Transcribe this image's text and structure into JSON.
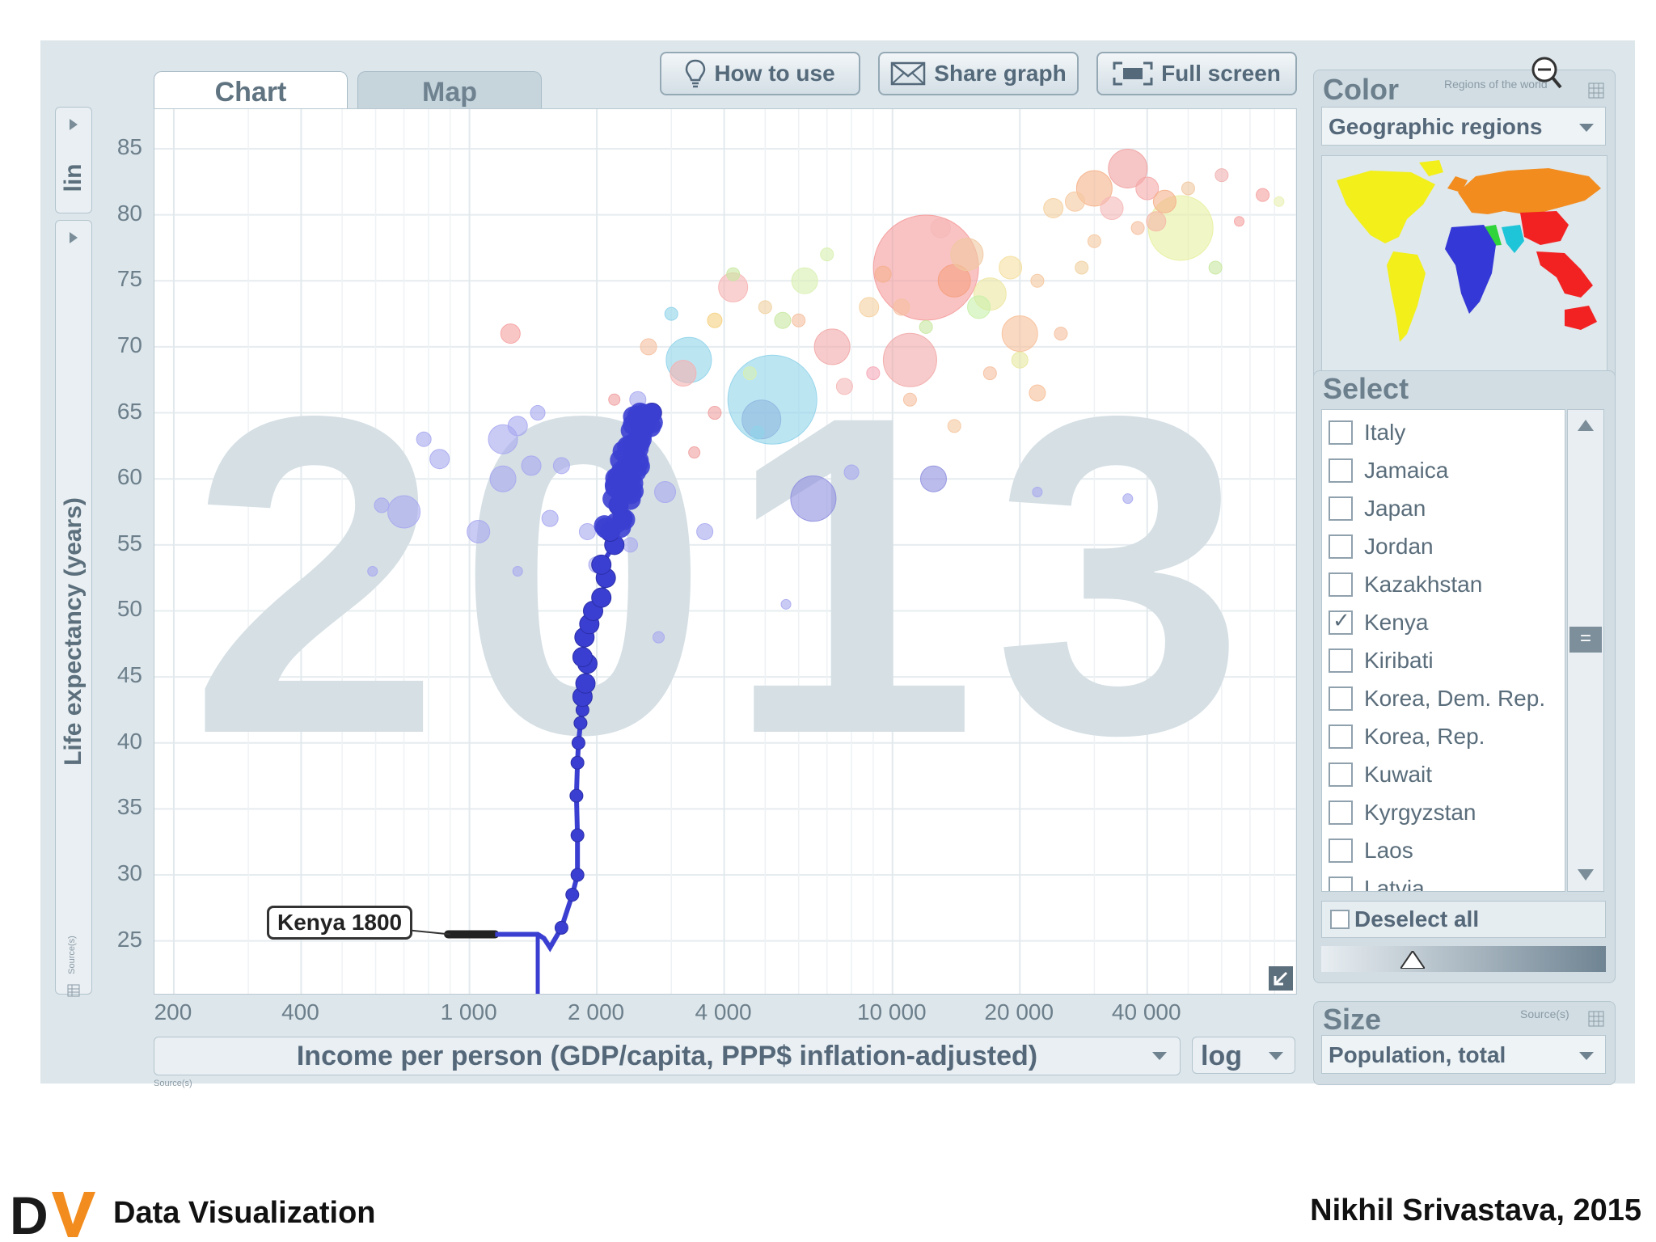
{
  "tabs": {
    "chart": "Chart",
    "map": "Map"
  },
  "toolbar": {
    "how_to_use": "How to use",
    "share_graph": "Share graph",
    "full_screen": "Full screen"
  },
  "y_axis": {
    "scale": "lin",
    "label": "Life expectancy (years)",
    "source": "Source(s)"
  },
  "x_axis": {
    "label": "Income per person (GDP/capita, PPP$ inflation-adjusted)",
    "scale": "log",
    "source": "Source(s)"
  },
  "chart_data": {
    "type": "scatter",
    "year_watermark": "2013",
    "xlabel": "Income per person (GDP/capita, PPP$ inflation-adjusted)",
    "ylabel": "Life expectancy (years)",
    "x_scale": "log",
    "y_scale": "lin",
    "xlim": [
      180,
      90000
    ],
    "ylim": [
      21,
      88
    ],
    "x_ticks": [
      200,
      400,
      1000,
      2000,
      4000,
      10000,
      20000,
      40000
    ],
    "x_tick_labels": [
      "200",
      "400",
      "1 000",
      "2 000",
      "4 000",
      "10 000",
      "20 000",
      "40 000"
    ],
    "y_ticks": [
      25,
      30,
      35,
      40,
      45,
      50,
      55,
      60,
      65,
      70,
      75,
      80,
      85
    ],
    "grid": true,
    "annotation": "Kenya 1800",
    "trail": {
      "name": "Kenya",
      "color": "#3b3fd1",
      "points": [
        [
          890,
          25.5
        ],
        [
          1100,
          25.5
        ],
        [
          1150,
          25.5
        ],
        [
          1450,
          25.5
        ],
        [
          1500,
          25.2
        ],
        [
          1550,
          24.5
        ],
        [
          1650,
          26
        ],
        [
          1750,
          28.5
        ],
        [
          1800,
          30
        ],
        [
          1800,
          33
        ],
        [
          1790,
          36
        ],
        [
          1800,
          38.5
        ],
        [
          1810,
          40
        ],
        [
          1830,
          41.5
        ],
        [
          1850,
          42.5
        ],
        [
          1850,
          43.5
        ],
        [
          1880,
          44.5
        ],
        [
          1900,
          46
        ],
        [
          1850,
          46.5
        ],
        [
          1870,
          48
        ],
        [
          1920,
          49
        ],
        [
          1960,
          50
        ],
        [
          2050,
          51
        ],
        [
          2100,
          52.5
        ],
        [
          2050,
          53.5
        ],
        [
          2200,
          55
        ],
        [
          2150,
          56
        ],
        [
          2300,
          57
        ],
        [
          2250,
          58
        ],
        [
          2350,
          59
        ],
        [
          2300,
          60
        ],
        [
          2400,
          61
        ],
        [
          2450,
          62
        ],
        [
          2500,
          63
        ],
        [
          2600,
          64
        ],
        [
          2700,
          65
        ]
      ]
    },
    "trail_head": {
      "x": 1450,
      "y": 25.5
    },
    "bubbles": [
      {
        "x": 12000,
        "y": 76,
        "r": 65,
        "c": "#f59b9b"
      },
      {
        "x": 5200,
        "y": 66,
        "r": 55,
        "c": "#8fd3ea"
      },
      {
        "x": 3300,
        "y": 69,
        "r": 28,
        "c": "#8fd3ea"
      },
      {
        "x": 6500,
        "y": 58.5,
        "r": 28,
        "c": "#8f8fe0"
      },
      {
        "x": 11000,
        "y": 69,
        "r": 33,
        "c": "#f2a8a8"
      },
      {
        "x": 7200,
        "y": 70,
        "r": 22,
        "c": "#f2a8a8"
      },
      {
        "x": 30000,
        "y": 82,
        "r": 22,
        "c": "#f5b28a"
      },
      {
        "x": 36000,
        "y": 83.5,
        "r": 24,
        "c": "#f0a0a0"
      },
      {
        "x": 48000,
        "y": 79,
        "r": 40,
        "c": "#e8f0a0"
      },
      {
        "x": 20000,
        "y": 71,
        "r": 22,
        "c": "#f7c09a"
      },
      {
        "x": 14000,
        "y": 75,
        "r": 20,
        "c": "#f5a080"
      },
      {
        "x": 15000,
        "y": 77,
        "r": 20,
        "c": "#f0c8a0"
      },
      {
        "x": 17000,
        "y": 74,
        "r": 20,
        "c": "#ede6a0"
      },
      {
        "x": 4900,
        "y": 64.5,
        "r": 24,
        "c": "#90b8e0"
      },
      {
        "x": 4200,
        "y": 74.5,
        "r": 18,
        "c": "#f7b2b2"
      },
      {
        "x": 3200,
        "y": 68,
        "r": 16,
        "c": "#f5b0b0"
      },
      {
        "x": 12500,
        "y": 60,
        "r": 16,
        "c": "#8f8fe0"
      },
      {
        "x": 700,
        "y": 57.5,
        "r": 20,
        "c": "#a7a9ef"
      },
      {
        "x": 850,
        "y": 61.5,
        "r": 12,
        "c": "#a7a9ef"
      },
      {
        "x": 1200,
        "y": 63,
        "r": 18,
        "c": "#a7a9ef"
      },
      {
        "x": 1200,
        "y": 60,
        "r": 16,
        "c": "#a7a9ef"
      },
      {
        "x": 1400,
        "y": 61,
        "r": 12,
        "c": "#a7a9ef"
      },
      {
        "x": 1050,
        "y": 56,
        "r": 14,
        "c": "#a7a9ef"
      },
      {
        "x": 1300,
        "y": 64,
        "r": 12,
        "c": "#a7a9ef"
      },
      {
        "x": 2900,
        "y": 59,
        "r": 13,
        "c": "#a7a9ef"
      },
      {
        "x": 3600,
        "y": 56,
        "r": 10,
        "c": "#a7a9ef"
      },
      {
        "x": 1900,
        "y": 56,
        "r": 10,
        "c": "#a7a9ef"
      },
      {
        "x": 1550,
        "y": 57,
        "r": 10,
        "c": "#a7a9ef"
      },
      {
        "x": 2000,
        "y": 53.5,
        "r": 10,
        "c": "#a7a9ef"
      },
      {
        "x": 2400,
        "y": 55,
        "r": 9,
        "c": "#a7a9ef"
      },
      {
        "x": 620,
        "y": 58,
        "r": 9,
        "c": "#a7a9ef"
      },
      {
        "x": 780,
        "y": 63,
        "r": 9,
        "c": "#a7a9ef"
      },
      {
        "x": 1650,
        "y": 61,
        "r": 10,
        "c": "#a7a9ef"
      },
      {
        "x": 1450,
        "y": 65,
        "r": 9,
        "c": "#a7a9ef"
      },
      {
        "x": 8000,
        "y": 60.5,
        "r": 9,
        "c": "#a7a9ef"
      },
      {
        "x": 2500,
        "y": 66,
        "r": 10,
        "c": "#a7a9ef"
      },
      {
        "x": 590,
        "y": 53,
        "r": 6,
        "c": "#a7a9ef"
      },
      {
        "x": 1300,
        "y": 53,
        "r": 6,
        "c": "#a7a9ef"
      },
      {
        "x": 5600,
        "y": 50.5,
        "r": 6,
        "c": "#a7a9ef"
      },
      {
        "x": 2800,
        "y": 48,
        "r": 7,
        "c": "#a7a9ef"
      },
      {
        "x": 22000,
        "y": 59,
        "r": 6,
        "c": "#a7a9ef"
      },
      {
        "x": 36000,
        "y": 58.5,
        "r": 6,
        "c": "#a7a9ef"
      },
      {
        "x": 1250,
        "y": 71,
        "r": 12,
        "c": "#f5a0a0"
      },
      {
        "x": 2650,
        "y": 70,
        "r": 10,
        "c": "#f5c0a0"
      },
      {
        "x": 3800,
        "y": 72,
        "r": 9,
        "c": "#f5d080"
      },
      {
        "x": 4200,
        "y": 75.5,
        "r": 8,
        "c": "#c8e8a0"
      },
      {
        "x": 5500,
        "y": 72,
        "r": 10,
        "c": "#c8e8a0"
      },
      {
        "x": 6200,
        "y": 75,
        "r": 16,
        "c": "#d8f0b0"
      },
      {
        "x": 8800,
        "y": 73,
        "r": 12,
        "c": "#f5d0a0"
      },
      {
        "x": 9500,
        "y": 75.5,
        "r": 10,
        "c": "#f5b090"
      },
      {
        "x": 13000,
        "y": 79,
        "r": 12,
        "c": "#f5b8b8"
      },
      {
        "x": 16000,
        "y": 73,
        "r": 14,
        "c": "#c8f0a8"
      },
      {
        "x": 19000,
        "y": 76,
        "r": 14,
        "c": "#f5e0a0"
      },
      {
        "x": 24000,
        "y": 80.5,
        "r": 12,
        "c": "#f5d0a0"
      },
      {
        "x": 27000,
        "y": 81,
        "r": 12,
        "c": "#f5c8a0"
      },
      {
        "x": 33000,
        "y": 80.5,
        "r": 14,
        "c": "#f5b8b8"
      },
      {
        "x": 40000,
        "y": 82,
        "r": 14,
        "c": "#f5a8a8"
      },
      {
        "x": 44000,
        "y": 81,
        "r": 14,
        "c": "#f5b08a"
      },
      {
        "x": 42000,
        "y": 79.5,
        "r": 12,
        "c": "#f5b8a8"
      },
      {
        "x": 58000,
        "y": 76,
        "r": 8,
        "c": "#c8e8a0"
      },
      {
        "x": 75000,
        "y": 81.5,
        "r": 8,
        "c": "#f5a0a0"
      },
      {
        "x": 82000,
        "y": 81,
        "r": 6,
        "c": "#e8f0b0"
      },
      {
        "x": 60000,
        "y": 83,
        "r": 8,
        "c": "#f0b0b0"
      },
      {
        "x": 22000,
        "y": 66.5,
        "r": 10,
        "c": "#f7c09a"
      },
      {
        "x": 7700,
        "y": 67,
        "r": 10,
        "c": "#f5b8b8"
      },
      {
        "x": 11000,
        "y": 66,
        "r": 8,
        "c": "#f5c0a0"
      },
      {
        "x": 14000,
        "y": 64,
        "r": 8,
        "c": "#f5c8a0"
      },
      {
        "x": 9000,
        "y": 68,
        "r": 8,
        "c": "#f5a8b8"
      },
      {
        "x": 4800,
        "y": 63.5,
        "r": 8,
        "c": "#8fd3ea"
      },
      {
        "x": 3000,
        "y": 72.5,
        "r": 8,
        "c": "#8fd3ea"
      },
      {
        "x": 20000,
        "y": 69,
        "r": 10,
        "c": "#e8e8a0"
      },
      {
        "x": 25000,
        "y": 71,
        "r": 8,
        "c": "#f5c0a0"
      },
      {
        "x": 17000,
        "y": 68,
        "r": 8,
        "c": "#f5c0a0"
      },
      {
        "x": 7000,
        "y": 77,
        "r": 8,
        "c": "#d8f0b0"
      },
      {
        "x": 10500,
        "y": 73,
        "r": 10,
        "c": "#f5c0a0"
      },
      {
        "x": 12000,
        "y": 71.5,
        "r": 8,
        "c": "#c8e8a0"
      },
      {
        "x": 6000,
        "y": 72,
        "r": 8,
        "c": "#f5c0a0"
      },
      {
        "x": 38000,
        "y": 79,
        "r": 8,
        "c": "#f5c0a0"
      },
      {
        "x": 50000,
        "y": 82,
        "r": 8,
        "c": "#f0c8a0"
      },
      {
        "x": 66000,
        "y": 79.5,
        "r": 6,
        "c": "#f5a0a0"
      },
      {
        "x": 30000,
        "y": 78,
        "r": 8,
        "c": "#f5c8a0"
      },
      {
        "x": 22000,
        "y": 75,
        "r": 8,
        "c": "#f5c8a0"
      },
      {
        "x": 28000,
        "y": 76,
        "r": 8,
        "c": "#f0d0a0"
      },
      {
        "x": 3800,
        "y": 65,
        "r": 8,
        "c": "#f0a0a0"
      },
      {
        "x": 3400,
        "y": 62,
        "r": 7,
        "c": "#f0a0a0"
      },
      {
        "x": 2200,
        "y": 66,
        "r": 7,
        "c": "#f0a0a0"
      },
      {
        "x": 4600,
        "y": 68,
        "r": 8,
        "c": "#d8f0b0"
      },
      {
        "x": 5000,
        "y": 73,
        "r": 8,
        "c": "#f0d0a0"
      }
    ]
  },
  "color_panel": {
    "title": "Color",
    "subtitle": "Regions of the world",
    "selected": "Geographic regions"
  },
  "select_panel": {
    "title": "Select",
    "items": [
      {
        "label": "Italy",
        "checked": false
      },
      {
        "label": "Jamaica",
        "checked": false
      },
      {
        "label": "Japan",
        "checked": false
      },
      {
        "label": "Jordan",
        "checked": false
      },
      {
        "label": "Kazakhstan",
        "checked": false
      },
      {
        "label": "Kenya",
        "checked": true
      },
      {
        "label": "Kiribati",
        "checked": false
      },
      {
        "label": "Korea, Dem. Rep.",
        "checked": false
      },
      {
        "label": "Korea, Rep.",
        "checked": false
      },
      {
        "label": "Kuwait",
        "checked": false
      },
      {
        "label": "Kyrgyzstan",
        "checked": false
      },
      {
        "label": "Laos",
        "checked": false
      },
      {
        "label": "Latvia",
        "checked": false
      }
    ],
    "deselect_all": "Deselect all"
  },
  "size_panel": {
    "title": "Size",
    "source": "Source(s)",
    "selected": "Population, total"
  },
  "footer": {
    "logo": "DV",
    "title": "Data Visualization",
    "author": "Nikhil Srivastava, 2015"
  },
  "colors": {
    "trail": "#3b3fd1",
    "watermark": "#d5dfe4",
    "accent": "#f28c1e"
  }
}
